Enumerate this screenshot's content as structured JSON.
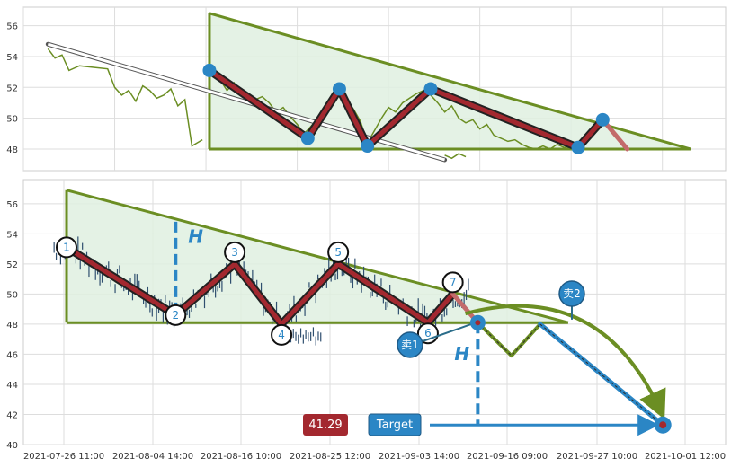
{
  "chart_data": [
    {
      "type": "line",
      "panel": "top",
      "ylim": [
        46.6,
        57.2
      ],
      "yticks": [
        48,
        50,
        52,
        54,
        56
      ],
      "grid": true,
      "price_color": "#6b8e23",
      "triangle": {
        "apex_top": {
          "x": 0.265,
          "y": 56.8
        },
        "apex_right": {
          "x": 0.95,
          "y": 48.0
        },
        "base_y": 48.0
      },
      "pattern": {
        "points": [
          {
            "x": 0.265,
            "y": 53.1
          },
          {
            "x": 0.405,
            "y": 48.7
          },
          {
            "x": 0.45,
            "y": 51.9
          },
          {
            "x": 0.49,
            "y": 48.2
          },
          {
            "x": 0.58,
            "y": 51.9
          },
          {
            "x": 0.79,
            "y": 48.1
          },
          {
            "x": 0.825,
            "y": 49.9
          }
        ],
        "tail_end": {
          "x": 0.86,
          "y": 48.0
        }
      },
      "trend_arrow": {
        "from": {
          "x": 0.035,
          "y": 54.8
        },
        "to": {
          "x": 0.6,
          "y": 47.3
        }
      },
      "price": {
        "segments": [
          [
            [
              0.035,
              54.5
            ],
            [
              0.045,
              53.9
            ],
            [
              0.055,
              54.1
            ],
            [
              0.065,
              53.1
            ],
            [
              0.08,
              53.4
            ],
            [
              0.1,
              53.3
            ],
            [
              0.12,
              53.2
            ],
            [
              0.13,
              52.0
            ],
            [
              0.14,
              51.5
            ],
            [
              0.15,
              51.8
            ],
            [
              0.16,
              51.1
            ],
            [
              0.17,
              52.1
            ],
            [
              0.18,
              51.8
            ],
            [
              0.19,
              51.3
            ],
            [
              0.2,
              51.5
            ],
            [
              0.21,
              51.9
            ],
            [
              0.22,
              50.8
            ],
            [
              0.23,
              51.2
            ],
            [
              0.24,
              48.2
            ],
            [
              0.255,
              48.6
            ]
          ],
          [
            [
              0.265,
              48.0
            ],
            [
              0.265,
              53.0
            ],
            [
              0.28,
              52.5
            ],
            [
              0.29,
              51.8
            ],
            [
              0.3,
              52.3
            ],
            [
              0.31,
              51.6
            ],
            [
              0.32,
              51.0
            ],
            [
              0.33,
              51.2
            ],
            [
              0.34,
              51.4
            ],
            [
              0.35,
              51.0
            ],
            [
              0.36,
              50.4
            ],
            [
              0.37,
              50.7
            ],
            [
              0.38,
              50.1
            ],
            [
              0.39,
              49.6
            ],
            [
              0.4,
              49.0
            ],
            [
              0.41,
              49.5
            ],
            [
              0.42,
              50.0
            ],
            [
              0.43,
              50.6
            ],
            [
              0.44,
              51.2
            ],
            [
              0.45,
              51.6
            ],
            [
              0.46,
              51.1
            ],
            [
              0.47,
              50.6
            ],
            [
              0.48,
              49.8
            ],
            [
              0.49,
              48.4
            ],
            [
              0.5,
              49.2
            ],
            [
              0.51,
              50.0
            ],
            [
              0.52,
              50.7
            ],
            [
              0.53,
              50.4
            ],
            [
              0.54,
              51.0
            ],
            [
              0.55,
              51.3
            ],
            [
              0.56,
              51.6
            ],
            [
              0.57,
              51.8
            ],
            [
              0.58,
              51.5
            ],
            [
              0.59,
              51.0
            ],
            [
              0.6,
              50.4
            ],
            [
              0.61,
              50.8
            ],
            [
              0.62,
              50.0
            ],
            [
              0.63,
              49.7
            ],
            [
              0.64,
              49.9
            ],
            [
              0.65,
              49.3
            ],
            [
              0.66,
              49.6
            ],
            [
              0.67,
              48.9
            ],
            [
              0.68,
              48.7
            ],
            [
              0.69,
              48.5
            ],
            [
              0.7,
              48.6
            ],
            [
              0.71,
              48.3
            ],
            [
              0.72,
              48.1
            ],
            [
              0.73,
              48.0
            ],
            [
              0.74,
              48.2
            ],
            [
              0.75,
              48.0
            ],
            [
              0.76,
              48.3
            ],
            [
              0.77,
              48.1
            ],
            [
              0.78,
              48.2
            ],
            [
              0.79,
              48.1
            ],
            [
              0.8,
              48.7
            ],
            [
              0.81,
              49.2
            ],
            [
              0.82,
              49.7
            ],
            [
              0.825,
              49.9
            ]
          ],
          [
            [
              0.6,
              47.6
            ],
            [
              0.61,
              47.4
            ],
            [
              0.62,
              47.7
            ],
            [
              0.63,
              47.5
            ]
          ]
        ]
      }
    },
    {
      "type": "line",
      "panel": "bottom",
      "ylim": [
        40,
        57.6
      ],
      "yticks": [
        40,
        42,
        44,
        46,
        48,
        50,
        52,
        54,
        56
      ],
      "xticks": [
        "2021-07-26 11:00",
        "2021-08-04 14:00",
        "2021-08-16 10:00",
        "2021-08-25 12:00",
        "2021-09-03 14:00",
        "2021-09-16 09:00",
        "2021-09-27 10:00",
        "2021-10-01 12:00"
      ],
      "grid": true,
      "price_color": "#2f4f6f",
      "triangle": {
        "apex_top": {
          "x": 0.0,
          "y": 56.9
        },
        "apex_right": {
          "x": 0.805,
          "y": 48.1
        },
        "base_y": 48.1
      },
      "pattern": {
        "points": [
          {
            "x": 0.0,
            "y": 53.1,
            "label": "1"
          },
          {
            "x": 0.175,
            "y": 48.6,
            "label": "2"
          },
          {
            "x": 0.27,
            "y": 52.0,
            "label": "3"
          },
          {
            "x": 0.345,
            "y": 48.0,
            "label": "4"
          },
          {
            "x": 0.436,
            "y": 52.0,
            "label": "5"
          },
          {
            "x": 0.58,
            "y": 48.1,
            "label": "6"
          },
          {
            "x": 0.62,
            "y": 50.0,
            "label": "7"
          }
        ],
        "tail_end": {
          "x": 0.66,
          "y": 48.1
        }
      },
      "height_marker_1": {
        "x": 0.175,
        "y_top": 54.8,
        "y_bottom": 48.6,
        "label": "H"
      },
      "height_marker_2": {
        "x": 0.66,
        "y_top": 48.1,
        "y_bottom": 41.3,
        "label": "H"
      },
      "projection": {
        "zigzag": [
          {
            "x": 0.66,
            "y": 48.1
          },
          {
            "x": 0.714,
            "y": 45.9
          },
          {
            "x": 0.76,
            "y": 48.0
          }
        ],
        "target_path": [
          {
            "x": 0.76,
            "y": 48.0
          },
          {
            "x": 0.957,
            "y": 41.3
          }
        ],
        "curve_start": {
          "x": 0.64,
          "y": 48.7
        },
        "curve_end": {
          "x": 0.955,
          "y": 42.1
        },
        "target_y": 41.3,
        "target_line_from_x": 0.56
      },
      "markers": [
        {
          "label": "卖1",
          "x": 0.56,
          "y": 46.5
        },
        {
          "label": "卖2",
          "x": 0.763,
          "y": 50.0
        }
      ],
      "badges": {
        "value": "41.29",
        "target": "Target"
      }
    }
  ]
}
